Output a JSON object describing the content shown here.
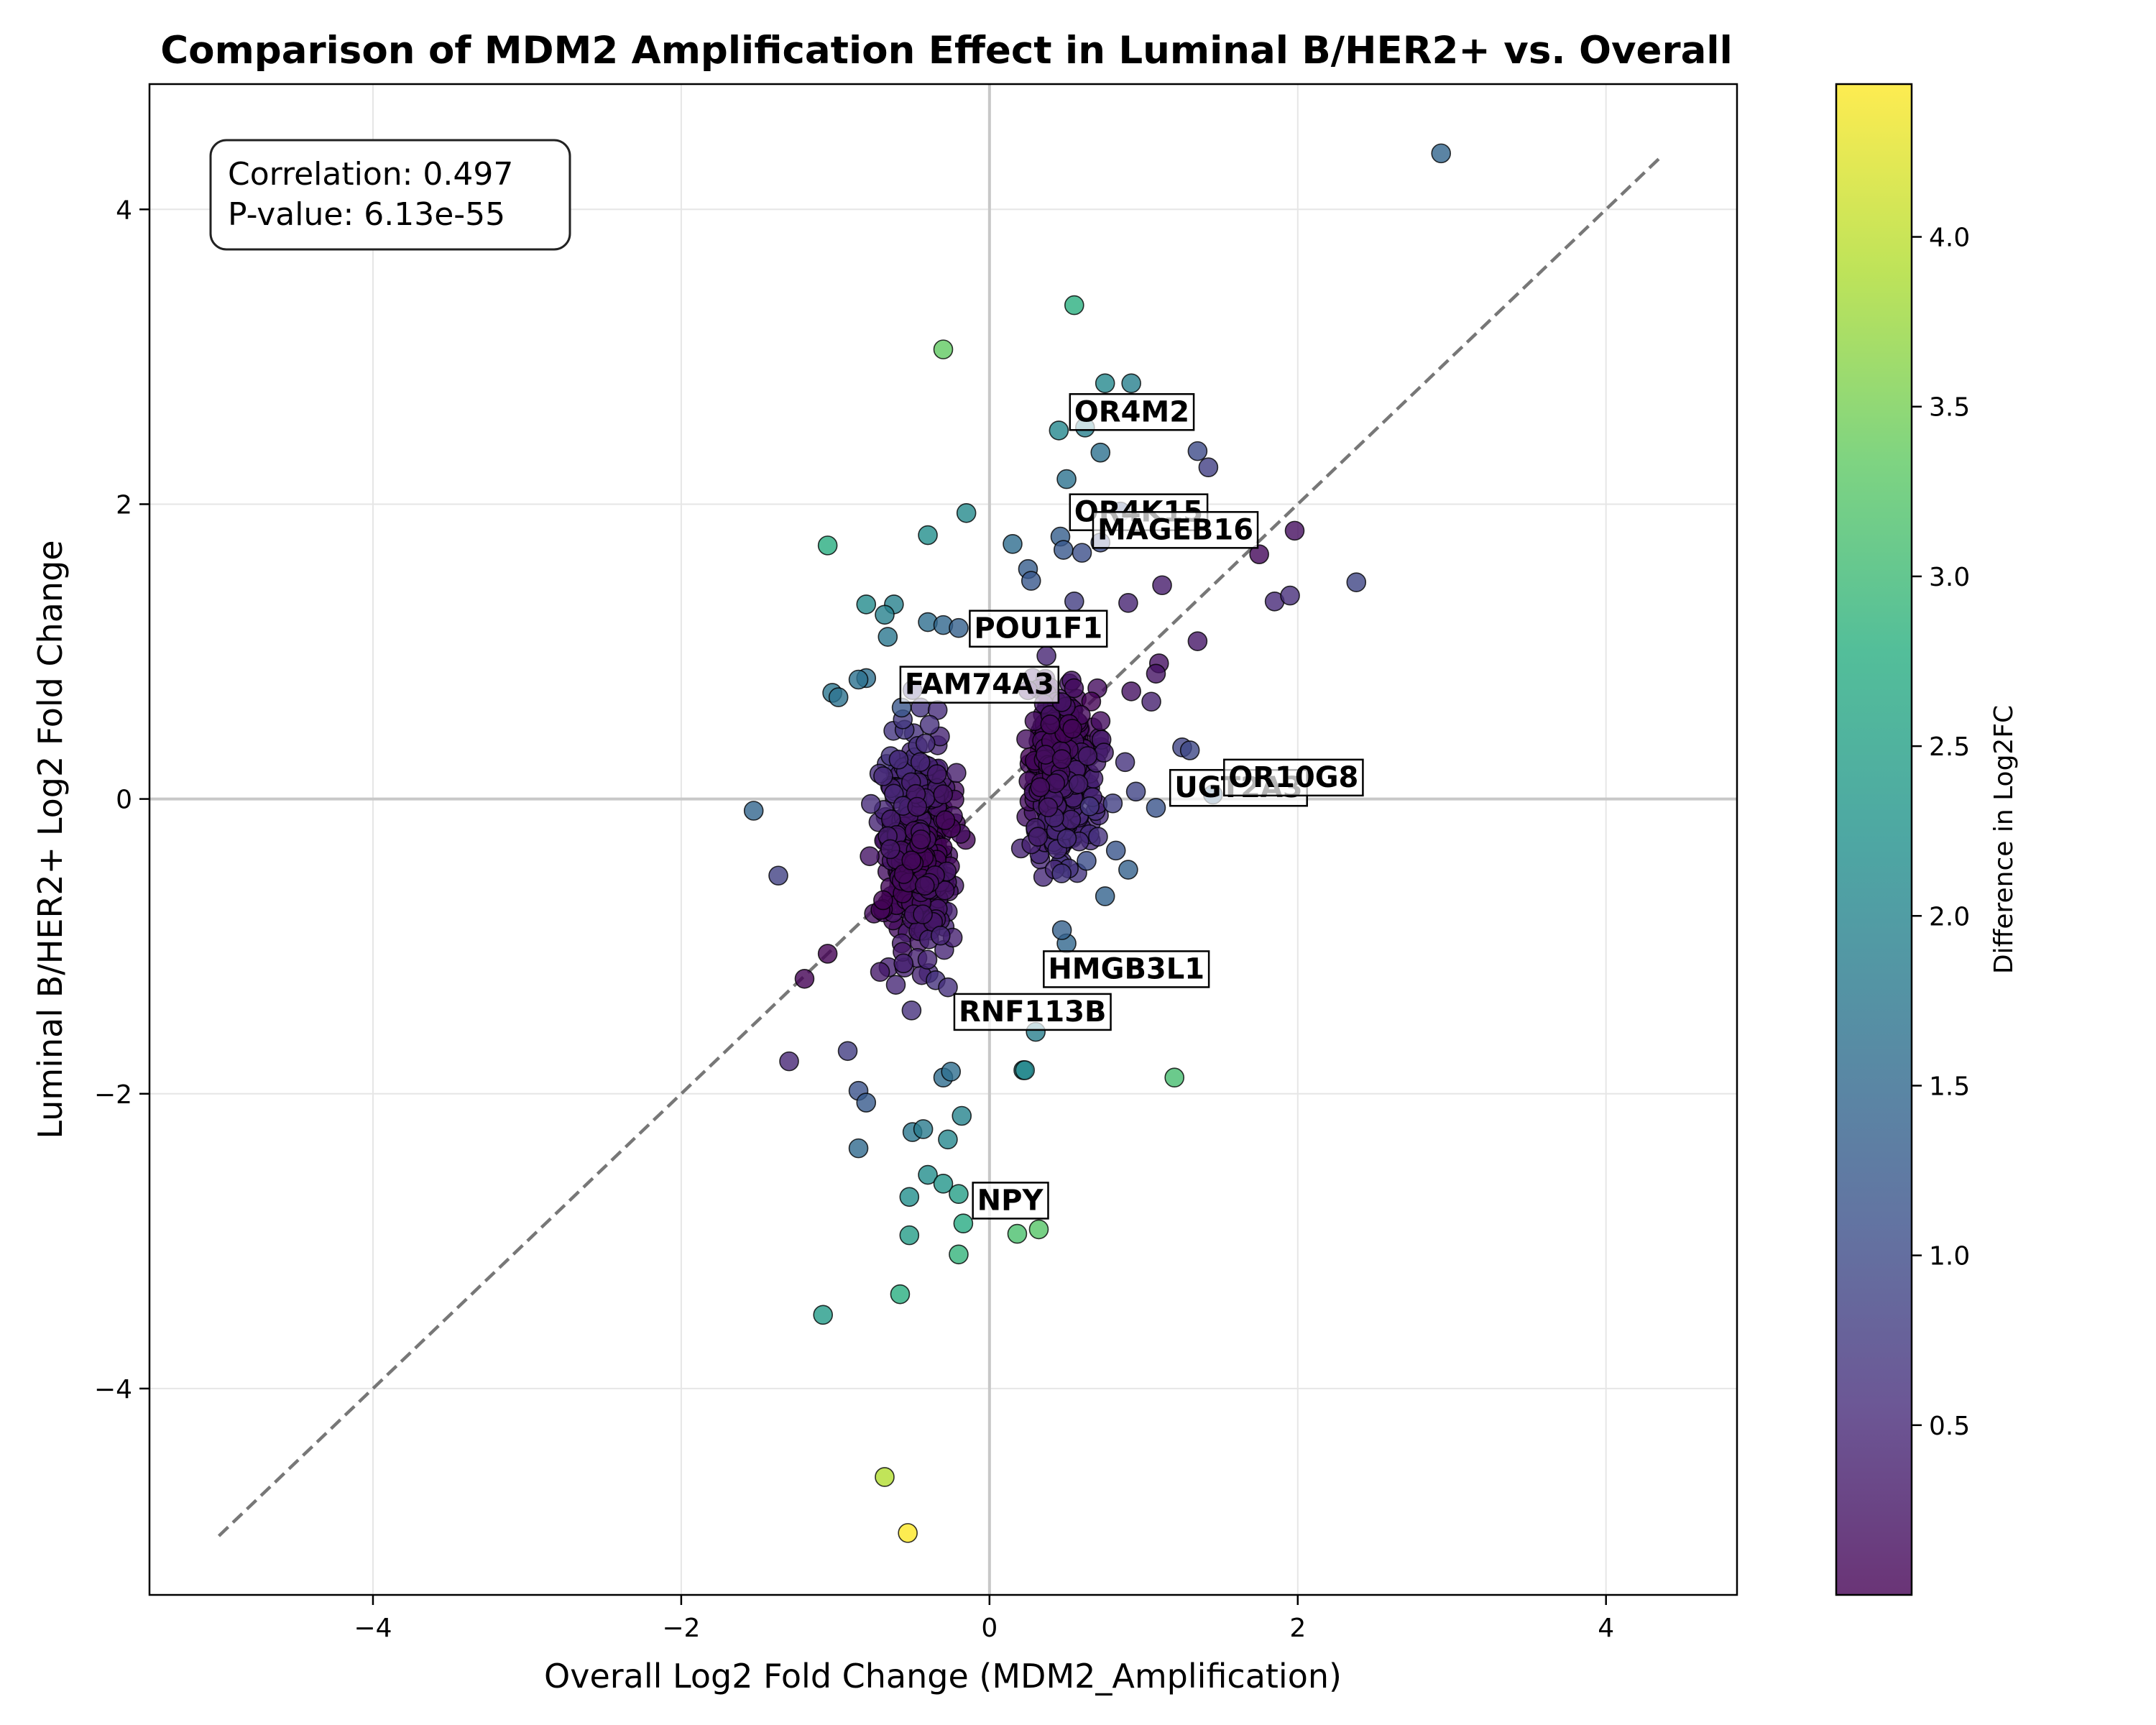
{
  "chart_data": {
    "type": "scatter",
    "title": "Comparison of MDM2 Amplification Effect in Luminal B/HER2+ vs. Overall",
    "xlabel": "Overall Log2 Fold Change (MDM2_Amplification)",
    "ylabel": "Luminal B/HER2+ Log2 Fold Change",
    "xlim": [
      -5.45,
      4.85
    ],
    "ylim": [
      -5.4,
      4.85
    ],
    "xticks": [
      -4,
      -2,
      0,
      2,
      4
    ],
    "yticks": [
      -4,
      -2,
      0,
      2,
      4
    ],
    "xtick_labels": [
      "−4",
      "−2",
      "0",
      "2",
      "4"
    ],
    "ytick_labels": [
      "−4",
      "−2",
      "0",
      "2",
      "4"
    ],
    "grid": true,
    "diagonal": {
      "style": "dashed",
      "color": "#777777",
      "from": [
        -5.0,
        -5.0
      ],
      "to": [
        4.35,
        4.35
      ]
    },
    "annotation": {
      "lines": [
        "Correlation: 0.497",
        "P-value: 6.13e-55"
      ],
      "placement": "top-left"
    },
    "colorbar": {
      "label": "Difference in Log2FC",
      "colormap": "viridis",
      "range": [
        0.0,
        4.45
      ],
      "ticks": [
        0.5,
        1.0,
        1.5,
        2.0,
        2.5,
        3.0,
        3.5,
        4.0
      ],
      "tick_labels": [
        "0.5",
        "1.0",
        "1.5",
        "2.0",
        "2.5",
        "3.0",
        "3.5",
        "4.0"
      ]
    },
    "labeled_genes": [
      {
        "name": "OR4M2",
        "x": 0.55,
        "y": 2.63
      },
      {
        "name": "OR4K15",
        "x": 0.55,
        "y": 1.95
      },
      {
        "name": "MAGEB16",
        "x": 0.7,
        "y": 1.83
      },
      {
        "name": "POU1F1",
        "x": -0.1,
        "y": 1.16
      },
      {
        "name": "FAM74A3",
        "x": -0.55,
        "y": 0.78
      },
      {
        "name": "UGT2A3",
        "x": 1.2,
        "y": 0.08
      },
      {
        "name": "OR10G8",
        "x": 1.55,
        "y": 0.15
      },
      {
        "name": "HMGB3L1",
        "x": 0.38,
        "y": -1.15
      },
      {
        "name": "RNF113B",
        "x": -0.2,
        "y": -1.44
      },
      {
        "name": "NPY",
        "x": -0.08,
        "y": -2.72
      }
    ],
    "outlier_points": [
      {
        "x": 2.93,
        "y": 4.38,
        "c": 1.45
      },
      {
        "x": 0.55,
        "y": 3.35,
        "c": 2.8
      },
      {
        "x": -0.3,
        "y": 3.05,
        "c": 3.35
      },
      {
        "x": 0.75,
        "y": 2.82,
        "c": 2.07
      },
      {
        "x": 0.92,
        "y": 2.82,
        "c": 1.9
      },
      {
        "x": 0.45,
        "y": 2.5,
        "c": 2.05
      },
      {
        "x": 0.62,
        "y": 2.52,
        "c": 1.9
      },
      {
        "x": 0.72,
        "y": 2.35,
        "c": 1.63
      },
      {
        "x": 1.35,
        "y": 2.36,
        "c": 1.01
      },
      {
        "x": 1.42,
        "y": 2.25,
        "c": 0.83
      },
      {
        "x": 0.5,
        "y": 2.17,
        "c": 1.67
      },
      {
        "x": 0.85,
        "y": 1.95,
        "c": 1.1
      },
      {
        "x": 0.46,
        "y": 1.78,
        "c": 1.32
      },
      {
        "x": 0.48,
        "y": 1.69,
        "c": 1.21
      },
      {
        "x": 0.6,
        "y": 1.67,
        "c": 1.07
      },
      {
        "x": 0.72,
        "y": 1.74,
        "c": 1.02
      },
      {
        "x": 1.98,
        "y": 1.82,
        "c": 0.16
      },
      {
        "x": 1.75,
        "y": 1.66,
        "c": 0.09
      },
      {
        "x": 2.38,
        "y": 1.47,
        "c": 0.91
      },
      {
        "x": 1.85,
        "y": 1.34,
        "c": 0.51
      },
      {
        "x": 1.95,
        "y": 1.38,
        "c": 0.57
      },
      {
        "x": 1.12,
        "y": 1.45,
        "c": 0.33
      },
      {
        "x": 1.35,
        "y": 1.07,
        "c": 0.28
      },
      {
        "x": -1.05,
        "y": 1.72,
        "c": 2.77
      },
      {
        "x": -0.4,
        "y": 1.79,
        "c": 2.19
      },
      {
        "x": -0.15,
        "y": 1.94,
        "c": 2.09
      },
      {
        "x": 0.15,
        "y": 1.73,
        "c": 1.58
      },
      {
        "x": 0.25,
        "y": 1.56,
        "c": 1.31
      },
      {
        "x": 0.27,
        "y": 1.48,
        "c": 1.21
      },
      {
        "x": -0.8,
        "y": 1.32,
        "c": 2.12
      },
      {
        "x": -0.62,
        "y": 1.32,
        "c": 1.94
      },
      {
        "x": -0.68,
        "y": 1.25,
        "c": 1.93
      },
      {
        "x": -0.4,
        "y": 1.2,
        "c": 1.6
      },
      {
        "x": -0.3,
        "y": 1.18,
        "c": 1.48
      },
      {
        "x": -0.2,
        "y": 1.16,
        "c": 1.36
      },
      {
        "x": -0.66,
        "y": 1.1,
        "c": 1.76
      },
      {
        "x": 0.55,
        "y": 1.34,
        "c": 0.79
      },
      {
        "x": 0.9,
        "y": 1.33,
        "c": 0.43
      },
      {
        "x": -1.02,
        "y": 0.72,
        "c": 1.74
      },
      {
        "x": -0.98,
        "y": 0.69,
        "c": 1.67
      },
      {
        "x": -0.8,
        "y": 0.82,
        "c": 1.62
      },
      {
        "x": -0.85,
        "y": 0.81,
        "c": 1.66
      },
      {
        "x": -0.57,
        "y": 0.62,
        "c": 1.19
      },
      {
        "x": 1.1,
        "y": 0.92,
        "c": 0.18
      },
      {
        "x": 1.08,
        "y": 0.85,
        "c": 0.23
      },
      {
        "x": 1.05,
        "y": 0.66,
        "c": 0.39
      },
      {
        "x": 0.92,
        "y": 0.73,
        "c": 0.19
      },
      {
        "x": 1.25,
        "y": 0.35,
        "c": 0.9
      },
      {
        "x": 1.3,
        "y": 0.33,
        "c": 0.97
      },
      {
        "x": 0.88,
        "y": 0.25,
        "c": 0.63
      },
      {
        "x": 0.95,
        "y": 0.05,
        "c": 0.9
      },
      {
        "x": 1.08,
        "y": -0.06,
        "c": 1.14
      },
      {
        "x": 1.45,
        "y": 0.03,
        "c": 1.42
      },
      {
        "x": 0.65,
        "y": -0.05,
        "c": 0.7
      },
      {
        "x": 0.8,
        "y": -0.03,
        "c": 0.83
      },
      {
        "x": 0.82,
        "y": -0.35,
        "c": 1.17
      },
      {
        "x": 0.9,
        "y": -0.48,
        "c": 1.38
      },
      {
        "x": 0.75,
        "y": -0.66,
        "c": 1.41
      },
      {
        "x": 0.63,
        "y": -0.42,
        "c": 1.05
      },
      {
        "x": -1.53,
        "y": -0.08,
        "c": 1.45
      },
      {
        "x": -1.37,
        "y": -0.52,
        "c": 0.85
      },
      {
        "x": -1.05,
        "y": -1.05,
        "c": 0.0
      },
      {
        "x": -1.2,
        "y": -1.22,
        "c": 0.02
      },
      {
        "x": -1.3,
        "y": -1.78,
        "c": 0.48
      },
      {
        "x": -0.92,
        "y": -1.71,
        "c": 0.79
      },
      {
        "x": -0.85,
        "y": -1.98,
        "c": 1.13
      },
      {
        "x": -0.8,
        "y": -2.06,
        "c": 1.26
      },
      {
        "x": -0.85,
        "y": -2.37,
        "c": 1.52
      },
      {
        "x": -0.5,
        "y": -2.26,
        "c": 1.76
      },
      {
        "x": -0.43,
        "y": -2.24,
        "c": 1.81
      },
      {
        "x": -0.3,
        "y": -1.89,
        "c": 1.59
      },
      {
        "x": -0.25,
        "y": -1.85,
        "c": 1.6
      },
      {
        "x": -0.27,
        "y": -2.31,
        "c": 2.04
      },
      {
        "x": -0.18,
        "y": -2.15,
        "c": 1.97
      },
      {
        "x": 0.22,
        "y": -1.84,
        "c": 2.06
      },
      {
        "x": 0.23,
        "y": -1.84,
        "c": 2.07
      },
      {
        "x": 0.3,
        "y": -1.58,
        "c": 1.88
      },
      {
        "x": 0.5,
        "y": -0.98,
        "c": 1.48
      },
      {
        "x": 0.47,
        "y": -0.89,
        "c": 1.36
      },
      {
        "x": -0.4,
        "y": -2.55,
        "c": 2.15
      },
      {
        "x": -0.3,
        "y": -2.61,
        "c": 2.31
      },
      {
        "x": -0.52,
        "y": -2.7,
        "c": 2.18
      },
      {
        "x": -0.2,
        "y": -2.68,
        "c": 2.48
      },
      {
        "x": -0.17,
        "y": -2.88,
        "c": 2.71
      },
      {
        "x": -0.52,
        "y": -2.96,
        "c": 2.44
      },
      {
        "x": 0.18,
        "y": -2.95,
        "c": 3.13
      },
      {
        "x": 0.32,
        "y": -2.92,
        "c": 3.24
      },
      {
        "x": -0.2,
        "y": -3.09,
        "c": 2.89
      },
      {
        "x": -0.58,
        "y": -3.36,
        "c": 2.78
      },
      {
        "x": -1.08,
        "y": -3.5,
        "c": 2.42
      },
      {
        "x": 1.2,
        "y": -1.89,
        "c": 3.09
      },
      {
        "x": -0.68,
        "y": -4.6,
        "c": 3.92
      },
      {
        "x": -0.53,
        "y": -4.98,
        "c": 4.45
      }
    ],
    "dense_clusters": [
      {
        "name": "left-cluster",
        "x_range": [
          -0.85,
          -0.1
        ],
        "y_range": [
          -1.6,
          0.9
        ],
        "count": 380,
        "seed": 11
      },
      {
        "name": "right-cluster",
        "x_range": [
          0.1,
          0.85
        ],
        "y_range": [
          -0.9,
          1.2
        ],
        "count": 320,
        "seed": 29
      }
    ]
  }
}
